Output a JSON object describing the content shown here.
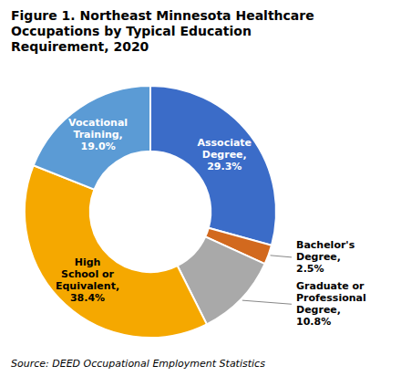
{
  "chart_data": {
    "type": "pie",
    "title": "Figure 1. Northeast Minnesota Healthcare\nOccupations by Typical Education\nRequirement, 2020",
    "source": "Source: DEED Occupational Employment Statistics",
    "categories": [
      "Associate\nDegree,\n29.3%",
      "Bachelor's\nDegree,\n2.5%",
      "Graduate or\nProfessional\nDegree,\n10.8%",
      "High\nSchool or\nEquivalent,\n38.4%",
      "Vocational\nTraining,\n19.0%"
    ],
    "values": [
      29.3,
      2.5,
      10.8,
      38.4,
      19.0
    ],
    "colors": [
      "#3B6CC8",
      "#D2691E",
      "#A9A9A9",
      "#F5A800",
      "#5B9BD5"
    ]
  }
}
